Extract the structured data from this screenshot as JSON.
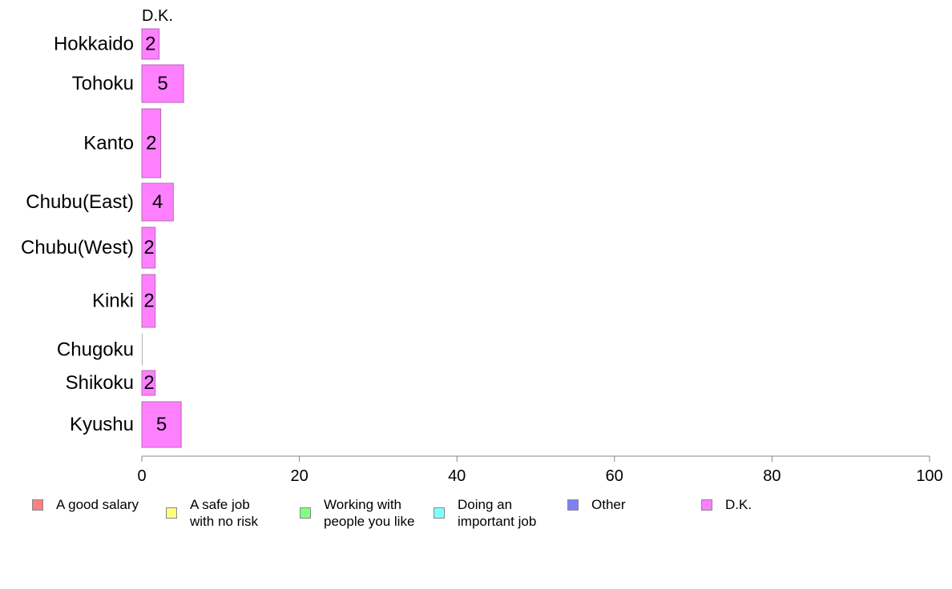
{
  "chart_data": {
    "type": "bar",
    "orientation": "horizontal",
    "header_label": "D.K.",
    "categories": [
      "Hokkaido",
      "Tohoku",
      "Kanto",
      "Chubu(East)",
      "Chubu(West)",
      "Kinki",
      "Chugoku",
      "Shikoku",
      "Kyushu"
    ],
    "series": [
      {
        "name": "D.K.",
        "color": "#ff80ff",
        "values": [
          2.2,
          5.3,
          2.4,
          4.0,
          1.7,
          1.7,
          0.0,
          1.7,
          5.0
        ],
        "labels": [
          "2",
          "5",
          "2",
          "4",
          "2",
          "2",
          "",
          "2",
          "5"
        ]
      }
    ],
    "xlim": [
      0,
      100
    ],
    "x_ticks": [
      "0",
      "20",
      "40",
      "60",
      "80",
      "100"
    ],
    "xlabel": "",
    "ylabel": "",
    "grid": false,
    "legend_position": "bottom",
    "legend": [
      {
        "label": "A good salary",
        "color": "#ff8080"
      },
      {
        "label": "A safe job\nwith no risk",
        "color": "#ffff80"
      },
      {
        "label": "Working with\npeople you like",
        "color": "#80ff80"
      },
      {
        "label": "Doing an\nimportant job",
        "color": "#80ffff"
      },
      {
        "label": "Other",
        "color": "#8080ff"
      },
      {
        "label": "D.K.",
        "color": "#ff80ff"
      }
    ]
  }
}
